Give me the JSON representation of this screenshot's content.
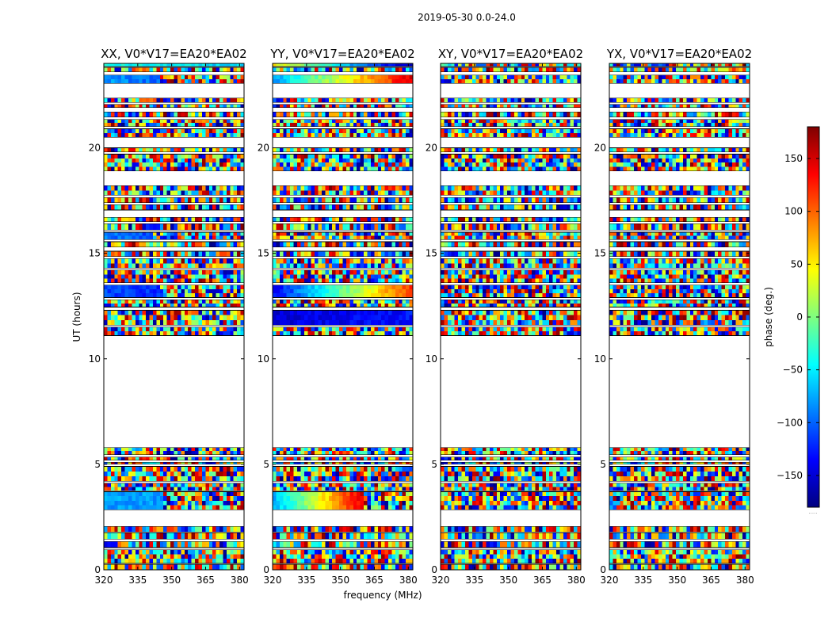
{
  "figure": {
    "suptitle": "2019-05-30 0.0-24.0",
    "colorbar_footnote": "....."
  },
  "chart_data": {
    "type": "heatmap",
    "suptitle": "2019-05-30 0.0-24.0",
    "xlabel": "frequency (MHz)",
    "ylabel": "UT (hours)",
    "xlim": [
      320,
      382
    ],
    "ylim": [
      0,
      24
    ],
    "x_ticks": [
      320,
      335,
      350,
      365,
      380
    ],
    "y_ticks": [
      0,
      5,
      10,
      15,
      20
    ],
    "colorbar": {
      "label": "phase (deg.)",
      "range": [
        -180,
        180
      ],
      "ticks": [
        150,
        100,
        50,
        0,
        -50,
        -100,
        -150
      ],
      "tick_labels": [
        "150",
        "100",
        "50",
        "0",
        "−50",
        "−100",
        "−150"
      ],
      "colormap": "jet",
      "colors": [
        "#00007f",
        "#0000ff",
        "#007fff",
        "#00ffff",
        "#7fff7f",
        "#ffff00",
        "#ff7f00",
        "#ff0000",
        "#7f0000"
      ]
    },
    "data_intervals_hours": [
      [
        0.0,
        0.25
      ],
      [
        0.3,
        0.95
      ],
      [
        1.05,
        1.35
      ],
      [
        1.45,
        1.75
      ],
      [
        1.8,
        2.05
      ],
      [
        2.85,
        3.7
      ],
      [
        3.75,
        4.1
      ],
      [
        4.2,
        4.9
      ],
      [
        5.0,
        5.1
      ],
      [
        5.2,
        5.35
      ],
      [
        5.45,
        5.8
      ],
      [
        11.1,
        11.5
      ],
      [
        11.6,
        12.3
      ],
      [
        12.45,
        12.8
      ],
      [
        12.9,
        13.5
      ],
      [
        13.6,
        14.2
      ],
      [
        14.3,
        14.75
      ],
      [
        14.85,
        15.1
      ],
      [
        15.3,
        15.55
      ],
      [
        15.65,
        16.0
      ],
      [
        16.1,
        16.4
      ],
      [
        16.5,
        16.7
      ],
      [
        17.05,
        17.3
      ],
      [
        17.4,
        17.65
      ],
      [
        17.75,
        18.2
      ],
      [
        18.9,
        19.7
      ],
      [
        19.8,
        20.0
      ],
      [
        20.5,
        20.9
      ],
      [
        21.0,
        21.35
      ],
      [
        21.45,
        21.7
      ],
      [
        21.9,
        22.05
      ],
      [
        22.15,
        22.35
      ],
      [
        23.05,
        23.45
      ],
      [
        23.6,
        23.8
      ],
      [
        23.85,
        24.0
      ]
    ],
    "panels": [
      {
        "title": "XX, V0*V17=EA20*EA02",
        "structured_phase": [
          {
            "t0": 2.85,
            "t1": 3.7,
            "from_mhz": 320,
            "to_mhz": 347,
            "phase_start": -80,
            "phase_end": -80
          },
          {
            "t0": 23.05,
            "t1": 23.45,
            "from_mhz": 320,
            "to_mhz": 345,
            "phase_start": -80,
            "phase_end": -100
          },
          {
            "t0": 23.85,
            "t1": 24.0,
            "from_mhz": 320,
            "to_mhz": 382,
            "phase_start": -40,
            "phase_end": -60
          },
          {
            "t0": 12.9,
            "t1": 13.5,
            "from_mhz": 320,
            "to_mhz": 345,
            "phase_start": -110,
            "phase_end": -120
          },
          {
            "t0": 15.65,
            "t1": 16.0,
            "from_mhz": 320,
            "to_mhz": 342,
            "phase_start": -90,
            "phase_end": -110
          }
        ]
      },
      {
        "title": "YY, V0*V17=EA20*EA02",
        "structured_phase": [
          {
            "t0": 2.85,
            "t1": 3.7,
            "from_mhz": 320,
            "to_mhz": 360,
            "phase_start": -80,
            "phase_end": 150
          },
          {
            "t0": 23.05,
            "t1": 23.45,
            "from_mhz": 320,
            "to_mhz": 382,
            "phase_start": -80,
            "phase_end": 150
          },
          {
            "t0": 23.85,
            "t1": 24.0,
            "from_mhz": 320,
            "to_mhz": 382,
            "phase_start": 50,
            "phase_end": -170
          },
          {
            "t0": 11.6,
            "t1": 12.3,
            "from_mhz": 320,
            "to_mhz": 382,
            "phase_start": -150,
            "phase_end": -130
          },
          {
            "t0": 12.9,
            "t1": 13.5,
            "from_mhz": 320,
            "to_mhz": 382,
            "phase_start": -140,
            "phase_end": 120
          }
        ]
      },
      {
        "title": "XY, V0*V17=EA20*EA02",
        "structured_phase": []
      },
      {
        "title": "YX, V0*V17=EA20*EA02",
        "structured_phase": []
      }
    ]
  }
}
